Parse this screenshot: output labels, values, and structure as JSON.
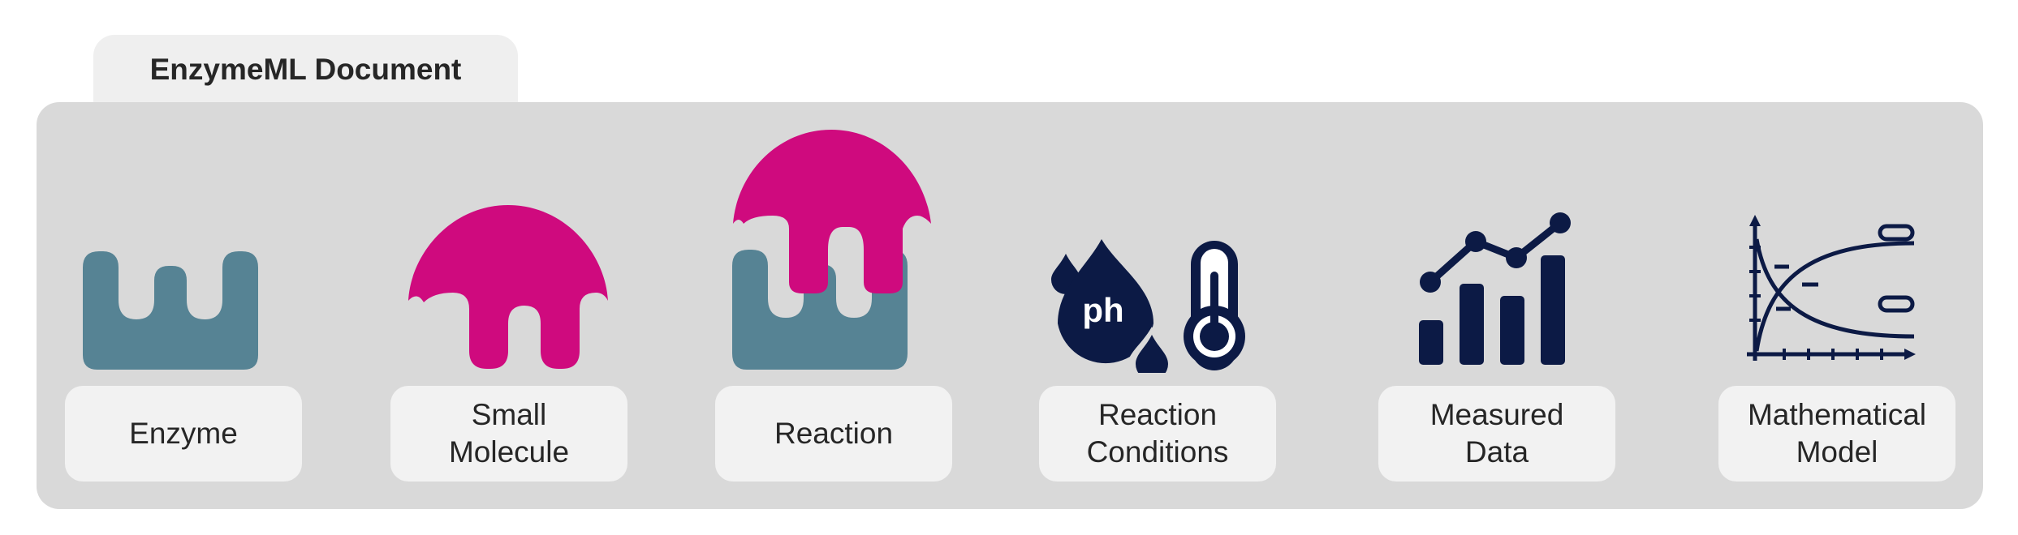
{
  "document": {
    "title": "EnzymeML Document"
  },
  "components": [
    {
      "label": "Enzyme",
      "icon": "enzyme-icon"
    },
    {
      "label": "Small\nMolecule",
      "icon": "small-molecule-icon"
    },
    {
      "label": "Reaction",
      "icon": "reaction-icon"
    },
    {
      "label": "Reaction\nConditions",
      "icon": "reaction-conditions-icon"
    },
    {
      "label": "Measured\nData",
      "icon": "measured-data-icon"
    },
    {
      "label": "Mathematical\nModel",
      "icon": "mathematical-model-icon"
    }
  ],
  "conditions_icon_text": "ph",
  "colors": {
    "enzyme": "#568394",
    "molecule": "#cf0a7e",
    "navy": "#0c1a45",
    "panel": "#d9d9d9",
    "card": "#f2f2f2"
  }
}
